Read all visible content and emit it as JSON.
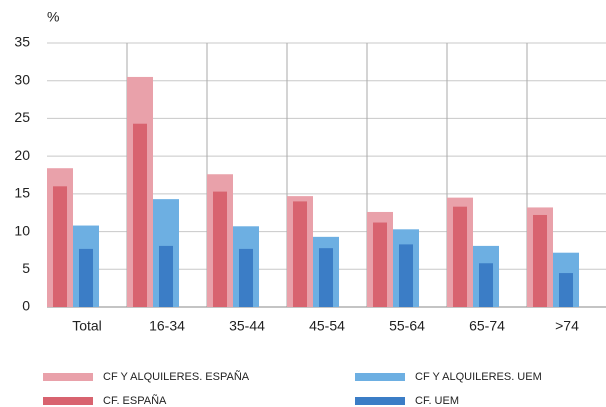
{
  "chart_data": {
    "type": "bar",
    "y_label": "%",
    "categories": [
      "Total",
      "16-34",
      "35-44",
      "45-54",
      "55-64",
      "65-74",
      ">74"
    ],
    "series": [
      {
        "name": "CF Y ALQUILERES. ESPAÑA",
        "color": "#e9a1aa",
        "values": [
          18.4,
          30.5,
          17.6,
          14.7,
          12.6,
          14.5,
          13.2
        ]
      },
      {
        "name": "CF Y ALQUILERES. UEM",
        "color": "#6dafe2",
        "values": [
          10.8,
          14.3,
          10.7,
          9.3,
          10.3,
          8.1,
          7.2
        ]
      },
      {
        "name": "CF. ESPAÑA",
        "color": "#d8636f",
        "values": [
          16.0,
          24.3,
          15.3,
          14.0,
          11.2,
          13.3,
          12.2
        ]
      },
      {
        "name": "CF. UEM",
        "color": "#3b7dc6",
        "values": [
          7.7,
          8.1,
          7.7,
          7.8,
          8.3,
          5.8,
          4.5
        ]
      }
    ],
    "ylim": [
      0,
      35
    ],
    "yticks": [
      0,
      5,
      10,
      15,
      20,
      25,
      30,
      35
    ],
    "grid": true
  }
}
